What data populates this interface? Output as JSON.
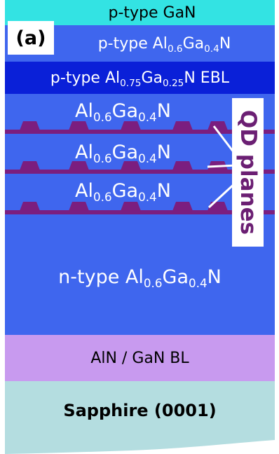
{
  "figure_label": "(a)",
  "colors": {
    "p_gan": "#33e3e3",
    "p_algan": "#3f66ee",
    "ebl": "#0a20d8",
    "active": "#3f66ee",
    "n_algan": "#3f66ee",
    "buffer": "#c89aef",
    "substrate": "#b4dde0",
    "qd": "#7b1e7f",
    "qd_label": "#6b1f73"
  },
  "layers": {
    "p_gan": {
      "text": "p-type GaN"
    },
    "p_algan": {
      "pre": "p-type Al",
      "x1": "0.6",
      "mid": "Ga",
      "x2": "0.4",
      "post": "N"
    },
    "ebl": {
      "pre": "p-type Al",
      "x1": "0.75",
      "mid": "Ga",
      "x2": "0.25",
      "post": "N EBL"
    },
    "barriers": [
      {
        "pre": "Al",
        "x1": "0.6",
        "mid": "Ga",
        "x2": "0.4",
        "post": "N"
      },
      {
        "pre": "Al",
        "x1": "0.6",
        "mid": "Ga",
        "x2": "0.4",
        "post": "N"
      },
      {
        "pre": "Al",
        "x1": "0.6",
        "mid": "Ga",
        "x2": "0.4",
        "post": "N"
      }
    ],
    "n_algan": {
      "pre": "n-type Al",
      "x1": "0.6",
      "mid": "Ga",
      "x2": "0.4",
      "post": "N"
    },
    "buffer": {
      "text": "AlN / GaN BL"
    },
    "substrate": {
      "text": "Sapphire (0001)"
    }
  },
  "qd_label": "QD planes"
}
